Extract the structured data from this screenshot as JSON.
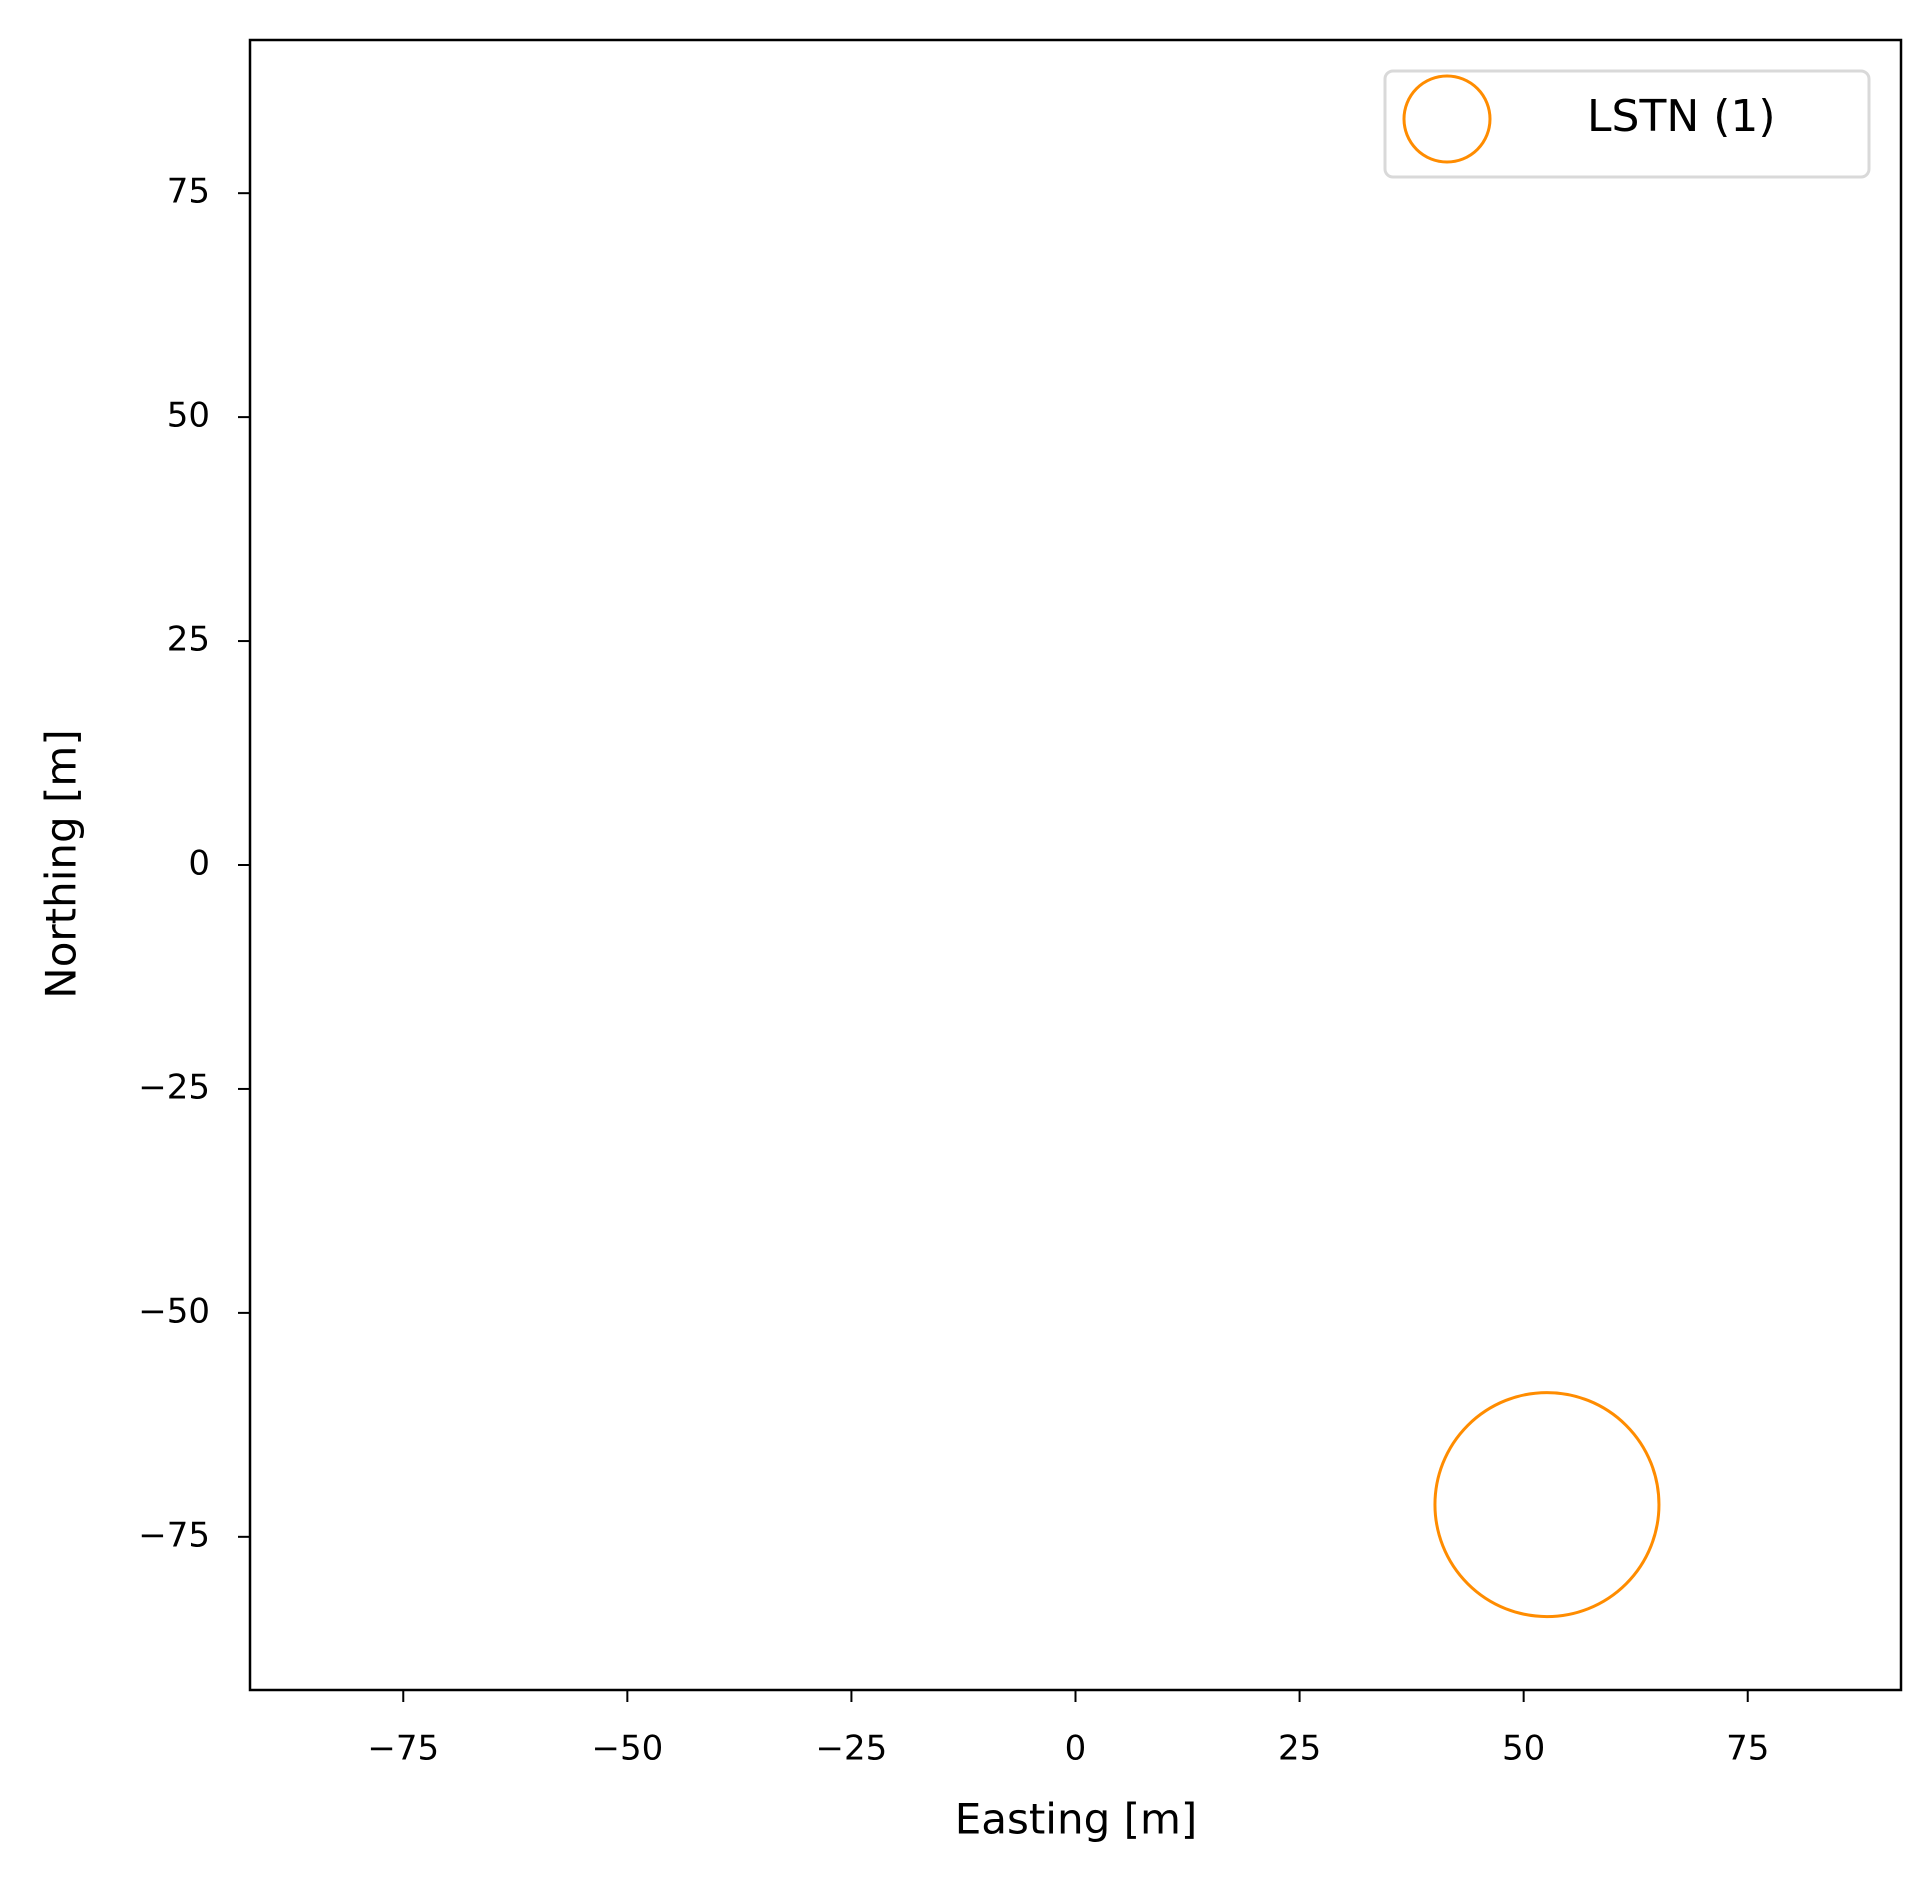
{
  "chart_data": {
    "type": "scatter",
    "x_label": "Easting [m]",
    "y_label": "Northing [m]",
    "series": [
      {
        "name": "LSTN (1)",
        "color": "#ff8c00",
        "x": [
          52.6
        ],
        "values": [
          -71.4
        ]
      }
    ],
    "xlim": [
      -92.1,
      92.1
    ],
    "ylim": [
      -92.1,
      92.1
    ],
    "xticks": [
      {
        "value": -75,
        "label": "−75"
      },
      {
        "value": -50,
        "label": "−50"
      },
      {
        "value": -25,
        "label": "−25"
      },
      0,
      25,
      50,
      75
    ],
    "yticks": [
      {
        "value": -75,
        "label": "−75"
      },
      {
        "value": -50,
        "label": "−50"
      },
      {
        "value": -25,
        "label": "−25"
      },
      0,
      25,
      50,
      75
    ],
    "legend": "upper right",
    "grid": false
  }
}
